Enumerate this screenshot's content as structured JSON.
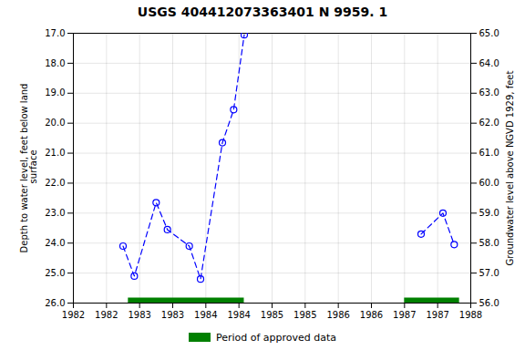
{
  "chart_data": {
    "type": "line",
    "title": "USGS 404412073363401 N  9959. 1",
    "ylabel": "Depth to water level, feet below land\n surface",
    "y2label": "Groundwater level above NGVD 1929, feet",
    "xlim": [
      1982.0,
      1988.0
    ],
    "xticks": [
      1982,
      {
        "value": 1982.5,
        "label": "1982"
      },
      1983,
      {
        "value": 1983.5,
        "label": "1983"
      },
      1984,
      {
        "value": 1984.5,
        "label": "1984"
      },
      1985,
      {
        "value": 1985.5,
        "label": "1985"
      },
      1986,
      {
        "value": 1986.5,
        "label": "1986"
      },
      1987,
      {
        "value": 1987.5,
        "label": "1987"
      },
      1988
    ],
    "ylim": [
      26.0,
      17.0
    ],
    "yticks": [
      {
        "value": 17.0,
        "label": "17.0"
      },
      {
        "value": 18.0,
        "label": "18.0"
      },
      {
        "value": 19.0,
        "label": "19.0"
      },
      {
        "value": 20.0,
        "label": "20.0"
      },
      {
        "value": 21.0,
        "label": "21.0"
      },
      {
        "value": 22.0,
        "label": "22.0"
      },
      {
        "value": 23.0,
        "label": "23.0"
      },
      {
        "value": 24.0,
        "label": "24.0"
      },
      {
        "value": 25.0,
        "label": "25.0"
      },
      {
        "value": 26.0,
        "label": "26.0"
      }
    ],
    "y2lim": [
      56.0,
      65.0
    ],
    "y2ticks": [
      {
        "value": 65.0,
        "label": "65.0"
      },
      {
        "value": 64.0,
        "label": "64.0"
      },
      {
        "value": 63.0,
        "label": "63.0"
      },
      {
        "value": 62.0,
        "label": "62.0"
      },
      {
        "value": 61.0,
        "label": "61.0"
      },
      {
        "value": 60.0,
        "label": "60.0"
      },
      {
        "value": 59.0,
        "label": "59.0"
      },
      {
        "value": 58.0,
        "label": "58.0"
      },
      {
        "value": 57.0,
        "label": "57.0"
      },
      {
        "value": 56.0,
        "label": "56.0"
      }
    ],
    "series": [
      {
        "type": "line",
        "color": "#0000ff",
        "marker": "o",
        "line_style": "dashed",
        "x": [
          1982.75,
          1982.92,
          1983.25,
          1983.42,
          1983.75,
          1983.92,
          1984.25,
          1984.42,
          1984.58
        ],
        "values": [
          24.1,
          25.1,
          22.65,
          23.55,
          24.1,
          25.2,
          20.65,
          19.55,
          17.05
        ]
      },
      {
        "type": "line",
        "color": "#0000ff",
        "marker": "o",
        "line_style": "dashed",
        "x": [
          1987.25,
          1987.58,
          1987.75
        ],
        "values": [
          23.7,
          23.0,
          24.05
        ]
      },
      {
        "type": "span",
        "name": "Period of approved data",
        "color": "#008000",
        "start": [
          1982.83,
          1987.0
        ],
        "end": [
          1984.58,
          1987.83
        ]
      }
    ],
    "grid": true,
    "legend": "bottom"
  }
}
